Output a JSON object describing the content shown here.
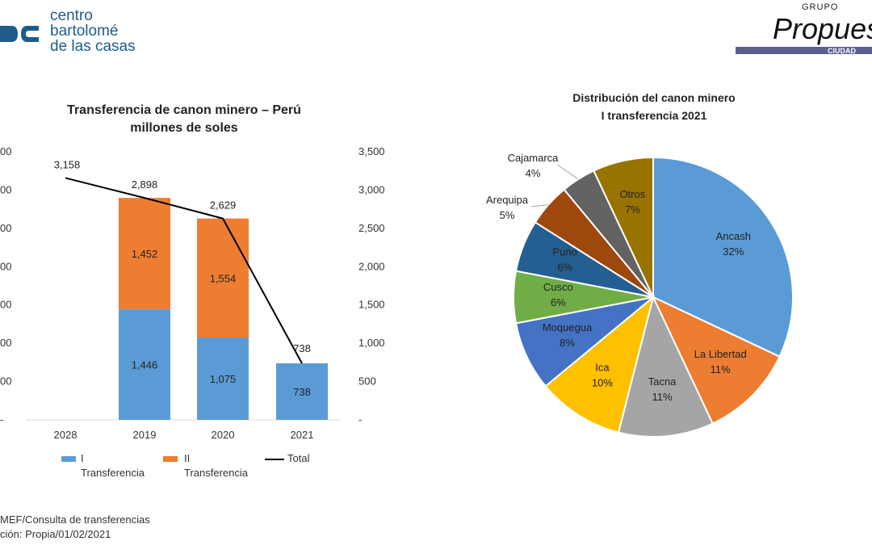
{
  "header": {
    "logo_left_lines": [
      "centro",
      "bartolomé",
      "de las casas"
    ],
    "logo_right_small": "GRUPO",
    "logo_right_main": "Propues",
    "logo_right_sub": "CIUDAD",
    "colors": {
      "logo_blue": "#1f5c8c",
      "logo_bar": "#5b5f8f"
    }
  },
  "chart_data": [
    {
      "type": "bar",
      "title_lines": [
        "Transferencia de canon minero – Perú",
        "millones de soles"
      ],
      "categories": [
        "2028",
        "2019",
        "2020",
        "2021"
      ],
      "series": [
        {
          "name": "I Transferencia",
          "kind": "bar",
          "color": "#5b9bd5",
          "values": [
            null,
            1446,
            1075,
            738
          ],
          "labels": [
            "",
            "1,446",
            "1,075",
            "738"
          ]
        },
        {
          "name": "II Transferencia",
          "kind": "bar",
          "color": "#ed7d31",
          "values": [
            null,
            1452,
            1554,
            null
          ],
          "labels": [
            "",
            "1,452",
            "1,554",
            ""
          ]
        },
        {
          "name": "Total",
          "kind": "line",
          "color": "#000000",
          "values": [
            3158,
            2898,
            2629,
            738
          ],
          "labels": [
            "3,158",
            "2,898",
            "2,629",
            "738"
          ]
        }
      ],
      "y_right_ticks": [
        "-",
        "500",
        "1,000",
        "1,500",
        "2,000",
        "2,500",
        "3,000",
        "3,500"
      ],
      "y_left_ticks": [
        "-",
        "00",
        "00",
        "00",
        "00",
        "00",
        "00",
        "00"
      ],
      "ylim": [
        0,
        3500
      ],
      "legend": [
        {
          "line1": "I",
          "line2": "Transferencia",
          "color": "#5b9bd5",
          "kind": "bar"
        },
        {
          "line1": "II",
          "line2": "Transferencia",
          "color": "#ed7d31",
          "kind": "bar"
        },
        {
          "line1": "Total",
          "line2": "",
          "color": "#000000",
          "kind": "line"
        }
      ],
      "legend_position": "bottom"
    },
    {
      "type": "pie",
      "title_lines": [
        "Distribución del canon minero",
        "I transferencia 2021"
      ],
      "slices": [
        {
          "label": "Ancash",
          "pct": "32%",
          "value": 32,
          "color": "#5b9bd5"
        },
        {
          "label": "La Libertad",
          "pct": "11%",
          "value": 11,
          "color": "#ed7d31"
        },
        {
          "label": "Tacna",
          "pct": "11%",
          "value": 11,
          "color": "#a5a5a5"
        },
        {
          "label": "Ica",
          "pct": "10%",
          "value": 10,
          "color": "#ffc000"
        },
        {
          "label": "Moquegua",
          "pct": "8%",
          "value": 8,
          "color": "#4472c4"
        },
        {
          "label": "Cusco",
          "pct": "6%",
          "value": 6,
          "color": "#70ad47"
        },
        {
          "label": "Puno",
          "pct": "6%",
          "value": 6,
          "color": "#255e91"
        },
        {
          "label": "Arequipa",
          "pct": "5%",
          "value": 5,
          "color": "#9e480e"
        },
        {
          "label": "Cajamarca",
          "pct": "4%",
          "value": 4,
          "color": "#636363"
        },
        {
          "label": "Otros",
          "pct": "7%",
          "value": 7,
          "color": "#997300"
        }
      ]
    }
  ],
  "source_lines": [
    "MEF/Consulta de transferencias",
    "ción: Propia/01/02/2021"
  ]
}
